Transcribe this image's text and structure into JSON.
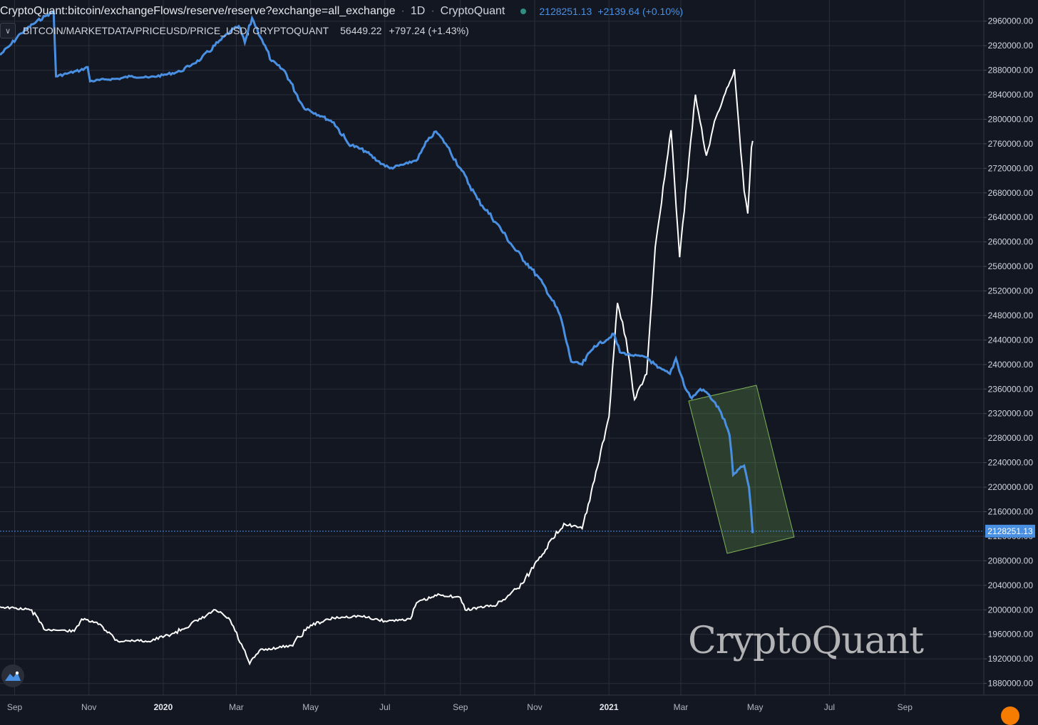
{
  "header": {
    "symbol": "CryptoQuant:bitcoin/exchangeFlows/reserve/reserve?exchange=all_exchange",
    "sep": "·",
    "interval": "1D",
    "source": "CryptoQuant",
    "value": "2128251.13",
    "change": "+2139.64 (+0.10%)"
  },
  "overlay": {
    "symbol": "BITCOIN/MARKETDATA/PRICEUSD/PRICE_USD, CRYPTOQUANT",
    "value": "56449.22",
    "change": "+797.24 (+1.43%)"
  },
  "colors": {
    "background": "#131722",
    "reserve_line": "#4a90e2",
    "price_line": "#ffffff",
    "grid": "#2a2e39",
    "highlight": "#7fb257"
  },
  "chart_data": {
    "type": "line",
    "xlabel": "",
    "ylabel": "",
    "x_tick_labels": [
      "Sep",
      "Nov",
      "2020",
      "Mar",
      "May",
      "Jul",
      "Sep",
      "Nov",
      "2021",
      "Mar",
      "May",
      "Jul",
      "Sep"
    ],
    "y_tick_labels": [
      "2960000.00",
      "2920000.00",
      "2880000.00",
      "2840000.00",
      "2800000.00",
      "2760000.00",
      "2720000.00",
      "2680000.00",
      "2640000.00",
      "2600000.00",
      "2560000.00",
      "2520000.00",
      "2480000.00",
      "2440000.00",
      "2400000.00",
      "2360000.00",
      "2320000.00",
      "2280000.00",
      "2240000.00",
      "2200000.00",
      "2160000.00",
      "2120000.00",
      "2080000.00",
      "2040000.00",
      "2000000.00",
      "1960000.00",
      "1920000.00",
      "1880000.00"
    ],
    "ylim": [
      1860000,
      2980000
    ],
    "x_range": [
      "2019-08-20",
      "2021-10-20"
    ],
    "grid": true,
    "last_value": 2128251.13,
    "series": [
      {
        "name": "CryptoQuant:bitcoin/exchangeFlows/reserve/reserve?exchange=all_exchange",
        "axis": "right",
        "points": [
          [
            "2019-08-20",
            2905000
          ],
          [
            "2019-08-28",
            2920000
          ],
          [
            "2019-09-06",
            2940000
          ],
          [
            "2019-09-16",
            2955000
          ],
          [
            "2019-09-26",
            2968000
          ],
          [
            "2019-10-03",
            2975000
          ],
          [
            "2019-10-05",
            2870000
          ],
          [
            "2019-10-15",
            2875000
          ],
          [
            "2019-10-25",
            2880000
          ],
          [
            "2019-10-31",
            2885000
          ],
          [
            "2019-11-02",
            2862000
          ],
          [
            "2019-11-15",
            2865000
          ],
          [
            "2019-11-25",
            2866000
          ],
          [
            "2019-12-05",
            2870000
          ],
          [
            "2019-12-20",
            2868000
          ],
          [
            "2020-01-01",
            2872000
          ],
          [
            "2020-01-15",
            2878000
          ],
          [
            "2020-01-25",
            2890000
          ],
          [
            "2020-02-01",
            2898000
          ],
          [
            "2020-02-15",
            2925000
          ],
          [
            "2020-02-25",
            2943000
          ],
          [
            "2020-03-03",
            2952000
          ],
          [
            "2020-03-08",
            2925000
          ],
          [
            "2020-03-14",
            2965000
          ],
          [
            "2020-03-22",
            2930000
          ],
          [
            "2020-03-30",
            2895000
          ],
          [
            "2020-04-10",
            2878000
          ],
          [
            "2020-04-25",
            2820000
          ],
          [
            "2020-05-10",
            2805000
          ],
          [
            "2020-05-20",
            2795000
          ],
          [
            "2020-06-01",
            2760000
          ],
          [
            "2020-06-15",
            2748000
          ],
          [
            "2020-06-25",
            2732000
          ],
          [
            "2020-07-05",
            2720000
          ],
          [
            "2020-07-20",
            2728000
          ],
          [
            "2020-07-28",
            2735000
          ],
          [
            "2020-08-05",
            2765000
          ],
          [
            "2020-08-12",
            2780000
          ],
          [
            "2020-08-20",
            2760000
          ],
          [
            "2020-09-01",
            2720000
          ],
          [
            "2020-09-15",
            2670000
          ],
          [
            "2020-10-01",
            2630000
          ],
          [
            "2020-10-15",
            2590000
          ],
          [
            "2020-10-30",
            2555000
          ],
          [
            "2020-11-10",
            2525000
          ],
          [
            "2020-11-22",
            2480000
          ],
          [
            "2020-12-01",
            2405000
          ],
          [
            "2020-12-10",
            2400000
          ],
          [
            "2020-12-20",
            2430000
          ],
          [
            "2020-12-30",
            2440000
          ],
          [
            "2021-01-05",
            2450000
          ],
          [
            "2021-01-10",
            2420000
          ],
          [
            "2021-01-20",
            2415000
          ],
          [
            "2021-02-01",
            2412000
          ],
          [
            "2021-02-10",
            2395000
          ],
          [
            "2021-02-20",
            2385000
          ],
          [
            "2021-02-25",
            2410000
          ],
          [
            "2021-03-05",
            2360000
          ],
          [
            "2021-03-10",
            2345000
          ],
          [
            "2021-03-17",
            2360000
          ],
          [
            "2021-03-22",
            2355000
          ],
          [
            "2021-03-28",
            2340000
          ],
          [
            "2021-04-03",
            2322000
          ],
          [
            "2021-04-10",
            2285000
          ],
          [
            "2021-04-13",
            2220000
          ],
          [
            "2021-04-18",
            2230000
          ],
          [
            "2021-04-22",
            2235000
          ],
          [
            "2021-04-26",
            2200000
          ],
          [
            "2021-04-29",
            2125000
          ]
        ]
      },
      {
        "name": "BITCOIN/MARKETDATA/PRICEUSD/PRICE_USD, CRYPTOQUANT",
        "axis": "left",
        "points": [
          [
            "2019-08-20",
            10600
          ],
          [
            "2019-09-15",
            10300
          ],
          [
            "2019-09-25",
            8400
          ],
          [
            "2019-10-20",
            8200
          ],
          [
            "2019-10-26",
            9400
          ],
          [
            "2019-11-10",
            8900
          ],
          [
            "2019-11-25",
            7200
          ],
          [
            "2019-12-10",
            7300
          ],
          [
            "2019-12-20",
            7200
          ],
          [
            "2020-01-10",
            8000
          ],
          [
            "2020-02-01",
            9400
          ],
          [
            "2020-02-13",
            10300
          ],
          [
            "2020-02-25",
            9300
          ],
          [
            "2020-03-12",
            5000
          ],
          [
            "2020-03-20",
            6300
          ],
          [
            "2020-04-15",
            6800
          ],
          [
            "2020-05-01",
            8800
          ],
          [
            "2020-05-20",
            9500
          ],
          [
            "2020-06-10",
            9700
          ],
          [
            "2020-07-01",
            9200
          ],
          [
            "2020-07-22",
            9400
          ],
          [
            "2020-07-27",
            11000
          ],
          [
            "2020-08-15",
            11800
          ],
          [
            "2020-09-01",
            11500
          ],
          [
            "2020-09-05",
            10300
          ],
          [
            "2020-10-01",
            10800
          ],
          [
            "2020-10-22",
            12900
          ],
          [
            "2020-11-05",
            15500
          ],
          [
            "2020-11-25",
            18800
          ],
          [
            "2020-12-10",
            18300
          ],
          [
            "2020-12-20",
            23000
          ],
          [
            "2021-01-01",
            29300
          ],
          [
            "2021-01-08",
            40500
          ],
          [
            "2021-01-15",
            37000
          ],
          [
            "2021-01-22",
            31000
          ],
          [
            "2021-02-01",
            33500
          ],
          [
            "2021-02-08",
            46000
          ],
          [
            "2021-02-21",
            57500
          ],
          [
            "2021-02-28",
            45000
          ],
          [
            "2021-03-13",
            61000
          ],
          [
            "2021-03-22",
            55000
          ],
          [
            "2021-03-30",
            58800
          ],
          [
            "2021-04-14",
            63500
          ],
          [
            "2021-04-22",
            51500
          ],
          [
            "2021-04-25",
            49300
          ],
          [
            "2021-04-28",
            55800
          ],
          [
            "2021-04-29",
            56449
          ]
        ]
      }
    ],
    "annotation": {
      "type": "rectangle",
      "color": "#7fb257",
      "start": "2021-03-01",
      "end": "2021-05-05"
    }
  }
}
